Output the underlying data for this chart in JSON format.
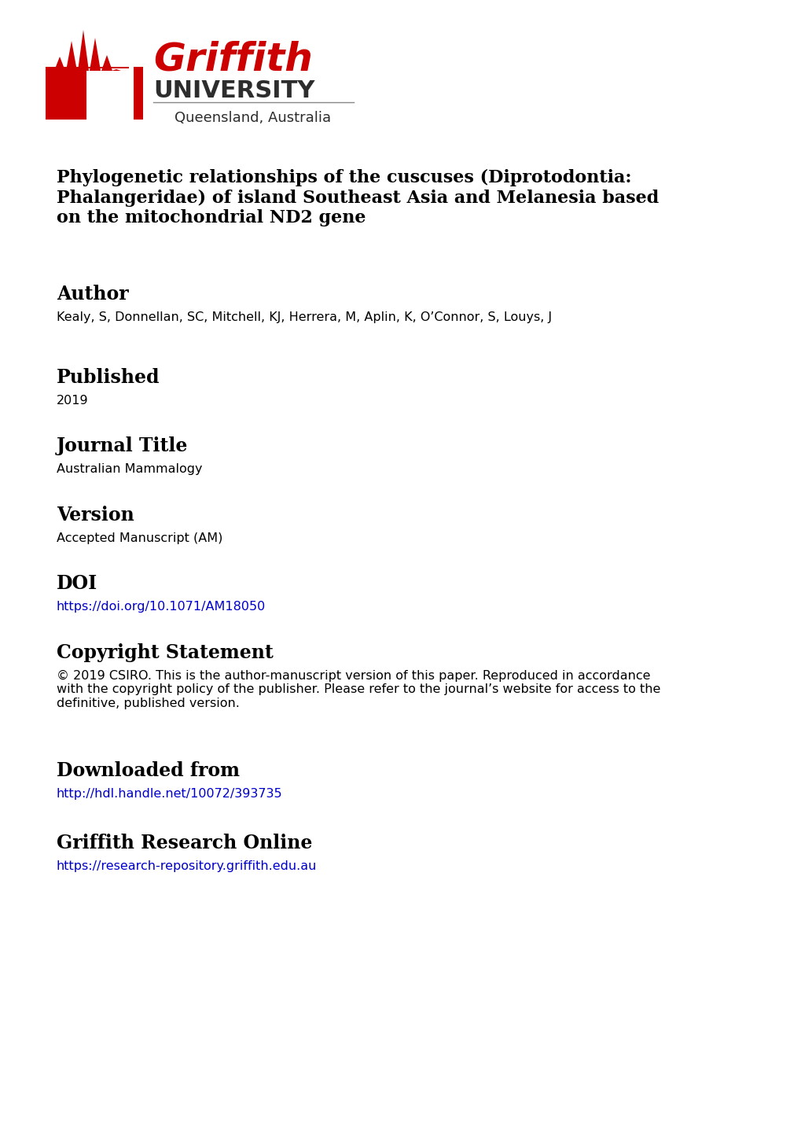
{
  "bg_color": "#ffffff",
  "logo_text_griffith": "Griffith",
  "logo_text_university": "UNIVERSITY",
  "logo_subtext": "Queensland, Australia",
  "logo_color": "#cc0000",
  "logo_dark_color": "#2d2d2d",
  "title": "Phylogenetic relationships of the cuscuses (Diprotodontia:\nPhalangeridae) of island Southeast Asia and Melanesia based\non the mitochondrial ND2 gene",
  "section_author": "Author",
  "author_value": "Kealy, S, Donnellan, SC, Mitchell, KJ, Herrera, M, Aplin, K, O’Connor, S, Louys, J",
  "section_published": "Published",
  "published_value": "2019",
  "section_journal": "Journal Title",
  "journal_value": "Australian Mammalogy",
  "section_version": "Version",
  "version_value": "Accepted Manuscript (AM)",
  "section_doi": "DOI",
  "doi_value": "https://doi.org/10.1071/AM18050",
  "section_copyright": "Copyright Statement",
  "copyright_value": "© 2019 CSIRO. This is the author-manuscript version of this paper. Reproduced in accordance\nwith the copyright policy of the publisher. Please refer to the journal’s website for access to the\ndefinitive, published version.",
  "section_downloaded": "Downloaded from",
  "downloaded_value": "http://hdl.handle.net/10072/393735",
  "section_gro": "Griffith Research Online",
  "gro_value": "https://research-repository.griffith.edu.au",
  "link_color": "#0000cc",
  "section_header_fontsize": 17,
  "body_fontsize": 11.5,
  "title_fontsize": 16
}
